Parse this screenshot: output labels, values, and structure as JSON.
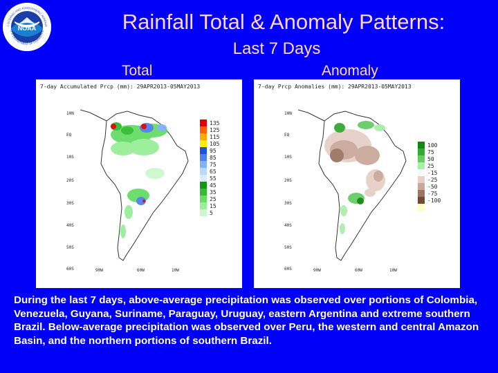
{
  "logo": {
    "text_top": "NATIONAL OCEANIC AND ATMOSPHERIC ADMINISTRATION",
    "center": "NOAA",
    "text_bottom": "U.S. DEPARTMENT OF COMMERCE"
  },
  "title": {
    "line1": "Rainfall Total & Anomaly Patterns:",
    "line2": "Last 7 Days"
  },
  "headers": {
    "total": "Total",
    "anomaly": "Anomaly"
  },
  "colors": {
    "background": "#0000f8",
    "title": "#ffd6d6",
    "caption": "#ffffff"
  },
  "total_map": {
    "title": "7-day Accumulated Prcp (mm): 29APR2013-05MAY2013",
    "y_labels": [
      "10N",
      "EQ",
      "10S",
      "20S",
      "30S",
      "40S",
      "50S",
      "60S"
    ],
    "x_labels": [
      "90W",
      "60W",
      "10W"
    ],
    "colorbar": [
      {
        "label": "135",
        "color": "#e00000"
      },
      {
        "label": "125",
        "color": "#ff6000"
      },
      {
        "label": "115",
        "color": "#ffaa00"
      },
      {
        "label": "105",
        "color": "#ffee00"
      },
      {
        "label": "95",
        "color": "#2050e0"
      },
      {
        "label": "85",
        "color": "#4a80f0"
      },
      {
        "label": "75",
        "color": "#80b0ff"
      },
      {
        "label": "65",
        "color": "#b8d8ff"
      },
      {
        "label": "55",
        "color": "#d8ecff"
      },
      {
        "label": "45",
        "color": "#119911"
      },
      {
        "label": "35",
        "color": "#33bb33"
      },
      {
        "label": "25",
        "color": "#66dd66"
      },
      {
        "label": "15",
        "color": "#99ee99"
      },
      {
        "label": "5",
        "color": "#ccf8cc"
      }
    ]
  },
  "anomaly_map": {
    "title": "7-day Prcp Anomalies (mm): 29APR2013-05MAY2013",
    "y_labels": [
      "10N",
      "EQ",
      "10S",
      "20S",
      "30S",
      "40S",
      "50S",
      "60S"
    ],
    "x_labels": [
      "90W",
      "60W",
      "10W"
    ],
    "colorbar": [
      {
        "label": "100",
        "color": "#118811"
      },
      {
        "label": "75",
        "color": "#33aa33"
      },
      {
        "label": "50",
        "color": "#66cc66"
      },
      {
        "label": "25",
        "color": "#aaeeaa"
      },
      {
        "label": "-15",
        "color": "#f8f8f8"
      },
      {
        "label": "-25",
        "color": "#e6d0c8"
      },
      {
        "label": "-50",
        "color": "#c9a89a"
      },
      {
        "label": "-75",
        "color": "#9e7464"
      },
      {
        "label": "-100",
        "color": "#6e4a38"
      },
      {
        "label": "",
        "color": "#ffffc0"
      }
    ]
  },
  "caption": "During the last 7 days, above-average precipitation was observed over portions of Colombia, Venezuela, Guyana, Suriname, Paraguay, Uruguay, eastern Argentina and extreme southern Brazil. Below-average precipitation was observed over Peru, the western and central Amazon Basin, and the northern portions of southern Brazil."
}
